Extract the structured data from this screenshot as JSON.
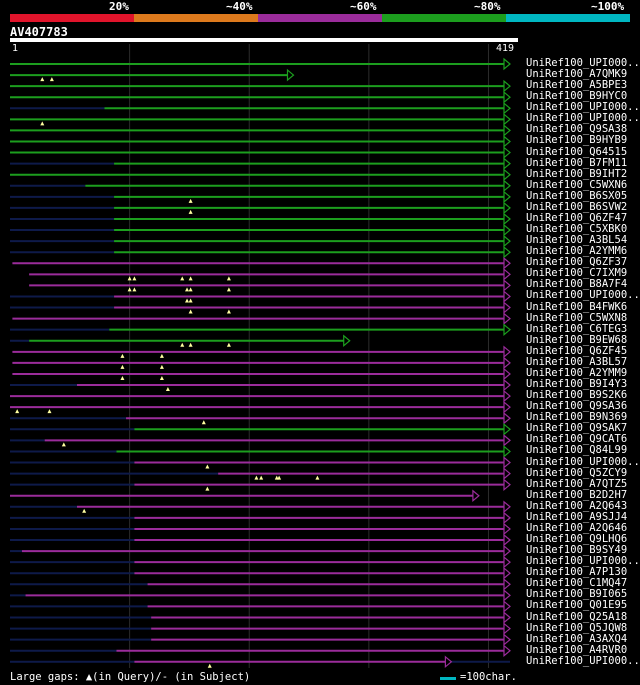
{
  "legend": {
    "labels": [
      "20%",
      "~40%",
      "~60%",
      "~80%",
      "~100%"
    ],
    "colors": [
      "#e1142b",
      "#dd7a1d",
      "#9b2c9b",
      "#1c9e1e",
      "#00b7c2"
    ]
  },
  "query": {
    "name": "AV407783",
    "start_label": "1",
    "end_label": "419",
    "length": 419
  },
  "colors": {
    "green": "#1c9e1e",
    "purple": "#9b2c9b",
    "navy": "#0e1a4a",
    "grid": "#2b2b2b"
  },
  "hits": [
    {
      "name": "UniRef100_UPI000..",
      "color": "green",
      "start": 1,
      "end": 419,
      "arrow": true,
      "gaps": [],
      "faint": []
    },
    {
      "name": "UniRef100_A7QMK9",
      "color": "green",
      "start": 1,
      "end": 238,
      "arrow": true,
      "gaps": [
        28,
        36
      ],
      "faint": []
    },
    {
      "name": "UniRef100_A5BPE3",
      "color": "green",
      "start": 1,
      "end": 419,
      "arrow": true,
      "gaps": [],
      "faint": []
    },
    {
      "name": "UniRef100_B9HYC0",
      "color": "green",
      "start": 1,
      "end": 419,
      "arrow": true,
      "gaps": [],
      "faint": []
    },
    {
      "name": "UniRef100_UPI000..",
      "color": "green",
      "start": 80,
      "end": 419,
      "arrow": true,
      "gaps": [],
      "faint": [
        [
          1,
          80
        ]
      ]
    },
    {
      "name": "UniRef100_UPI000..",
      "color": "green",
      "start": 1,
      "end": 419,
      "arrow": true,
      "gaps": [
        28
      ],
      "faint": []
    },
    {
      "name": "UniRef100_Q9SA38",
      "color": "green",
      "start": 1,
      "end": 419,
      "arrow": true,
      "gaps": [],
      "faint": []
    },
    {
      "name": "UniRef100_B9HYB9",
      "color": "green",
      "start": 1,
      "end": 419,
      "arrow": true,
      "gaps": [],
      "faint": []
    },
    {
      "name": "UniRef100_Q64515",
      "color": "green",
      "start": 1,
      "end": 419,
      "arrow": true,
      "gaps": [],
      "faint": []
    },
    {
      "name": "UniRef100_B7FM11",
      "color": "green",
      "start": 88,
      "end": 419,
      "arrow": true,
      "gaps": [],
      "faint": [
        [
          1,
          88
        ]
      ]
    },
    {
      "name": "UniRef100_B9IHT2",
      "color": "green",
      "start": 1,
      "end": 419,
      "arrow": true,
      "gaps": [],
      "faint": []
    },
    {
      "name": "UniRef100_C5WXN6",
      "color": "green",
      "start": 64,
      "end": 419,
      "arrow": true,
      "gaps": [],
      "faint": [
        [
          1,
          64
        ]
      ]
    },
    {
      "name": "UniRef100_B6SX05",
      "color": "green",
      "start": 88,
      "end": 419,
      "arrow": true,
      "gaps": [
        152
      ],
      "faint": [
        [
          1,
          88
        ]
      ]
    },
    {
      "name": "UniRef100_B6SVW2",
      "color": "green",
      "start": 88,
      "end": 419,
      "arrow": true,
      "gaps": [
        152
      ],
      "faint": [
        [
          1,
          88
        ]
      ]
    },
    {
      "name": "UniRef100_Q6ZF47",
      "color": "green",
      "start": 88,
      "end": 419,
      "arrow": true,
      "gaps": [],
      "faint": [
        [
          1,
          88
        ]
      ]
    },
    {
      "name": "UniRef100_C5XBK0",
      "color": "green",
      "start": 88,
      "end": 419,
      "arrow": true,
      "gaps": [],
      "faint": [
        [
          1,
          88
        ]
      ]
    },
    {
      "name": "UniRef100_A3BL54",
      "color": "green",
      "start": 88,
      "end": 419,
      "arrow": true,
      "gaps": [],
      "faint": [
        [
          1,
          88
        ]
      ]
    },
    {
      "name": "UniRef100_A2YMM6",
      "color": "green",
      "start": 88,
      "end": 419,
      "arrow": true,
      "gaps": [],
      "faint": [
        [
          1,
          88
        ]
      ]
    },
    {
      "name": "UniRef100_Q6ZF37",
      "color": "purple",
      "start": 3,
      "end": 419,
      "arrow": true,
      "gaps": [],
      "faint": []
    },
    {
      "name": "UniRef100_C7IXM9",
      "color": "purple",
      "start": 17,
      "end": 419,
      "arrow": true,
      "gaps": [
        101,
        105,
        145,
        152,
        184
      ],
      "faint": []
    },
    {
      "name": "UniRef100_B8A7F4",
      "color": "purple",
      "start": 17,
      "end": 419,
      "arrow": true,
      "gaps": [
        101,
        105,
        149,
        152,
        184
      ],
      "faint": []
    },
    {
      "name": "UniRef100_UPI000..",
      "color": "purple",
      "start": 88,
      "end": 419,
      "arrow": true,
      "gaps": [
        149,
        152
      ],
      "faint": [
        [
          1,
          88
        ]
      ]
    },
    {
      "name": "UniRef100_B4FWK6",
      "color": "purple",
      "start": 88,
      "end": 419,
      "arrow": true,
      "gaps": [
        152,
        184
      ],
      "faint": [
        [
          1,
          88
        ]
      ]
    },
    {
      "name": "UniRef100_C5WXN8",
      "color": "purple",
      "start": 3,
      "end": 419,
      "arrow": true,
      "gaps": [],
      "faint": []
    },
    {
      "name": "UniRef100_C6TEG3",
      "color": "green",
      "start": 84,
      "end": 419,
      "arrow": true,
      "gaps": [],
      "faint": [
        [
          1,
          84
        ]
      ]
    },
    {
      "name": "UniRef100_B9EW68",
      "color": "green",
      "start": 17,
      "end": 285,
      "arrow": true,
      "gaps": [
        145,
        152,
        184
      ],
      "faint": [
        [
          1,
          17
        ]
      ]
    },
    {
      "name": "UniRef100_Q6ZF45",
      "color": "purple",
      "start": 3,
      "end": 419,
      "arrow": true,
      "gaps": [
        95,
        128
      ],
      "faint": []
    },
    {
      "name": "UniRef100_A3BL57",
      "color": "purple",
      "start": 3,
      "end": 419,
      "arrow": true,
      "gaps": [
        95,
        128
      ],
      "faint": []
    },
    {
      "name": "UniRef100_A2YMM9",
      "color": "purple",
      "start": 3,
      "end": 419,
      "arrow": true,
      "gaps": [
        95,
        128
      ],
      "faint": []
    },
    {
      "name": "UniRef100_B9I4Y3",
      "color": "purple",
      "start": 57,
      "end": 419,
      "arrow": true,
      "gaps": [
        133
      ],
      "faint": [
        [
          1,
          57
        ]
      ]
    },
    {
      "name": "UniRef100_B9S2K6",
      "color": "purple",
      "start": 1,
      "end": 419,
      "arrow": true,
      "gaps": [],
      "faint": []
    },
    {
      "name": "UniRef100_Q9SA36",
      "color": "purple",
      "start": 1,
      "end": 419,
      "arrow": true,
      "gaps": [
        7,
        34
      ],
      "faint": []
    },
    {
      "name": "UniRef100_B9N369",
      "color": "purple",
      "start": 98,
      "end": 419,
      "arrow": true,
      "gaps": [
        163
      ],
      "faint": [
        [
          1,
          98
        ]
      ]
    },
    {
      "name": "UniRef100_Q9SAK7",
      "color": "green",
      "start": 105,
      "end": 419,
      "arrow": true,
      "gaps": [],
      "faint": [
        [
          1,
          105
        ]
      ]
    },
    {
      "name": "UniRef100_Q9CAT6",
      "color": "purple",
      "start": 30,
      "end": 419,
      "arrow": true,
      "gaps": [
        46
      ],
      "faint": [
        [
          1,
          30
        ]
      ]
    },
    {
      "name": "UniRef100_Q84L99",
      "color": "green",
      "start": 90,
      "end": 419,
      "arrow": true,
      "gaps": [],
      "faint": [
        [
          1,
          90
        ]
      ]
    },
    {
      "name": "UniRef100_UPI000..",
      "color": "purple",
      "start": 105,
      "end": 419,
      "arrow": true,
      "gaps": [
        166
      ],
      "faint": [
        [
          1,
          105
        ]
      ]
    },
    {
      "name": "UniRef100_Q5ZCY9",
      "color": "purple",
      "start": 175,
      "end": 419,
      "arrow": true,
      "gaps": [
        207,
        211,
        224,
        226,
        258
      ],
      "faint": [
        [
          1,
          175
        ]
      ]
    },
    {
      "name": "UniRef100_A7QTZ5",
      "color": "purple",
      "start": 105,
      "end": 419,
      "arrow": true,
      "gaps": [
        166
      ],
      "faint": [
        [
          1,
          105
        ]
      ]
    },
    {
      "name": "UniRef100_B2D2H7",
      "color": "purple",
      "start": 1,
      "end": 393,
      "arrow": true,
      "gaps": [],
      "faint": []
    },
    {
      "name": "UniRef100_A2Q643",
      "color": "purple",
      "start": 57,
      "end": 419,
      "arrow": true,
      "gaps": [
        63
      ],
      "faint": [
        [
          1,
          57
        ]
      ]
    },
    {
      "name": "UniRef100_A9SJJ4",
      "color": "purple",
      "start": 105,
      "end": 419,
      "arrow": true,
      "gaps": [],
      "faint": [
        [
          1,
          105
        ]
      ]
    },
    {
      "name": "UniRef100_A2Q646",
      "color": "purple",
      "start": 105,
      "end": 419,
      "arrow": true,
      "gaps": [],
      "faint": [
        [
          1,
          105
        ]
      ]
    },
    {
      "name": "UniRef100_Q9LHQ6",
      "color": "purple",
      "start": 105,
      "end": 419,
      "arrow": true,
      "gaps": [],
      "faint": [
        [
          1,
          105
        ]
      ]
    },
    {
      "name": "UniRef100_B9SY49",
      "color": "purple",
      "start": 11,
      "end": 419,
      "arrow": true,
      "gaps": [],
      "faint": [
        [
          1,
          11
        ]
      ]
    },
    {
      "name": "UniRef100_UPI000..",
      "color": "purple",
      "start": 105,
      "end": 419,
      "arrow": true,
      "gaps": [],
      "faint": [
        [
          1,
          105
        ]
      ]
    },
    {
      "name": "UniRef100_A7P130",
      "color": "purple",
      "start": 105,
      "end": 419,
      "arrow": true,
      "gaps": [],
      "faint": [
        [
          1,
          105
        ]
      ]
    },
    {
      "name": "UniRef100_C1MQ47",
      "color": "purple",
      "start": 116,
      "end": 419,
      "arrow": true,
      "gaps": [],
      "faint": [
        [
          1,
          116
        ]
      ]
    },
    {
      "name": "UniRef100_B9I065",
      "color": "purple",
      "start": 14,
      "end": 419,
      "arrow": true,
      "gaps": [],
      "faint": [
        [
          1,
          14
        ]
      ]
    },
    {
      "name": "UniRef100_Q01E95",
      "color": "purple",
      "start": 116,
      "end": 419,
      "arrow": true,
      "gaps": [],
      "faint": [
        [
          1,
          116
        ]
      ]
    },
    {
      "name": "UniRef100_Q25A18",
      "color": "purple",
      "start": 119,
      "end": 419,
      "arrow": true,
      "gaps": [],
      "faint": [
        [
          1,
          119
        ]
      ]
    },
    {
      "name": "UniRef100_Q5JQW8",
      "color": "purple",
      "start": 119,
      "end": 419,
      "arrow": true,
      "gaps": [],
      "faint": [
        [
          1,
          119
        ]
      ]
    },
    {
      "name": "UniRef100_A3AXQ4",
      "color": "purple",
      "start": 119,
      "end": 419,
      "arrow": true,
      "gaps": [],
      "faint": [
        [
          1,
          119
        ]
      ]
    },
    {
      "name": "UniRef100_A4RVR0",
      "color": "purple",
      "start": 90,
      "end": 419,
      "arrow": true,
      "gaps": [],
      "faint": [
        [
          1,
          90
        ]
      ]
    },
    {
      "name": "UniRef100_UPI000..",
      "color": "purple",
      "start": 105,
      "end": 370,
      "arrow": true,
      "gaps": [
        168
      ],
      "faint": [
        [
          1,
          105
        ],
        [
          370,
          419
        ]
      ]
    }
  ],
  "footer": {
    "left": "Large gaps: ▲(in Query)/- (in Subject)",
    "scale": "=100char."
  }
}
